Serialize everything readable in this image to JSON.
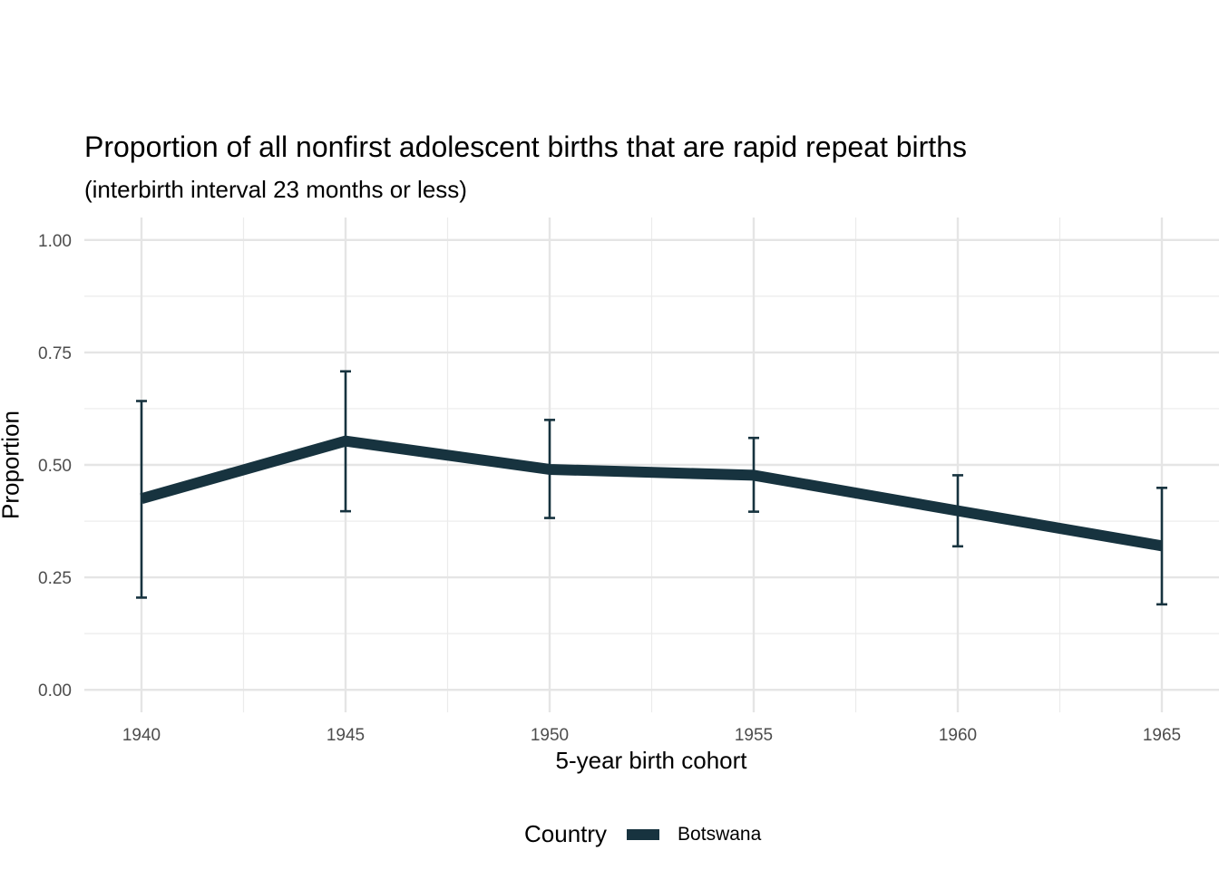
{
  "chart_data": {
    "type": "line",
    "title": "Proportion of all nonfirst adolescent births that are rapid repeat births",
    "subtitle": "(interbirth interval 23 months or less)",
    "xlabel": "5-year birth cohort",
    "ylabel": "Proportion",
    "x": [
      1940,
      1945,
      1950,
      1955,
      1960,
      1965
    ],
    "x_ticks": [
      "1940",
      "1945",
      "1950",
      "1955",
      "1960",
      "1965"
    ],
    "xlim": [
      1938.6,
      1966.4
    ],
    "y_ticks": [
      "0.00",
      "0.25",
      "0.50",
      "0.75",
      "1.00"
    ],
    "ylim": [
      -0.05,
      1.05
    ],
    "grid": true,
    "legend_position": "bottom",
    "legend_title": "Country",
    "series": [
      {
        "name": "Botswana",
        "color": "#17333f",
        "values": [
          0.425,
          0.553,
          0.49,
          0.477,
          0.398,
          0.32
        ],
        "error_low": [
          0.205,
          0.397,
          0.382,
          0.396,
          0.319,
          0.19
        ],
        "error_high": [
          0.642,
          0.708,
          0.6,
          0.56,
          0.477,
          0.449
        ]
      }
    ]
  }
}
